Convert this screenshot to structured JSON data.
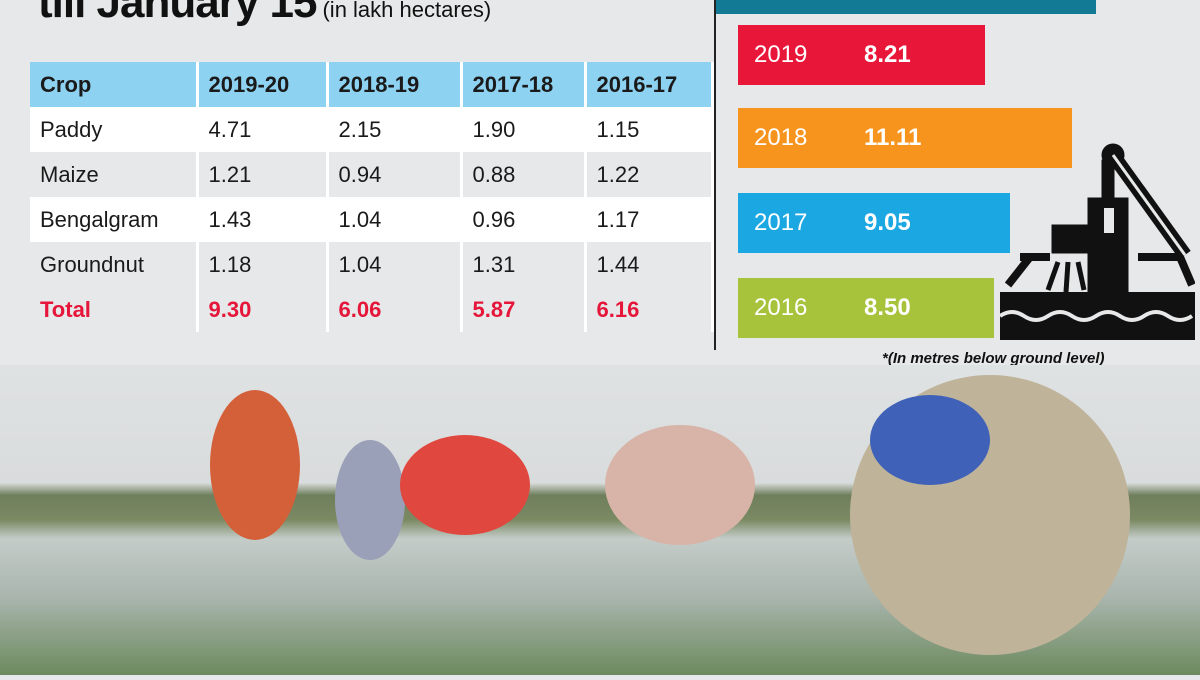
{
  "title": {
    "main": "till January 15",
    "unit": "(in lakh hectares)"
  },
  "water_level": {
    "note": "*(In metres below ground level)",
    "icon": "hand-pump-icon"
  },
  "colors": {
    "header": "#8ed2f2",
    "total": "#e5163a",
    "teal": "#137a95"
  },
  "chart_data": [
    {
      "type": "table",
      "columns": [
        "Crop",
        "2019-20",
        "2018-19",
        "2017-18",
        "2016-17"
      ],
      "rows": [
        [
          "Paddy",
          "4.71",
          "2.15",
          "1.90",
          "1.15"
        ],
        [
          "Maize",
          "1.21",
          "0.94",
          "0.88",
          "1.22"
        ],
        [
          "Bengalgram",
          "1.43",
          "1.04",
          "0.96",
          "1.17"
        ],
        [
          "Groundnut",
          "1.18",
          "1.04",
          "1.31",
          "1.44"
        ],
        [
          "Total",
          "9.30",
          "6.06",
          "5.87",
          "6.16"
        ]
      ]
    },
    {
      "type": "bar",
      "orientation": "horizontal",
      "categories": [
        "2019",
        "2018",
        "2017",
        "2016"
      ],
      "values": [
        8.21,
        11.11,
        9.05,
        8.5
      ],
      "labels": [
        "8.21",
        "11.11",
        "9.05",
        "8.50"
      ],
      "colors": [
        "#e8173a",
        "#f7941d",
        "#1ba7e1",
        "#a7c23b"
      ]
    }
  ]
}
